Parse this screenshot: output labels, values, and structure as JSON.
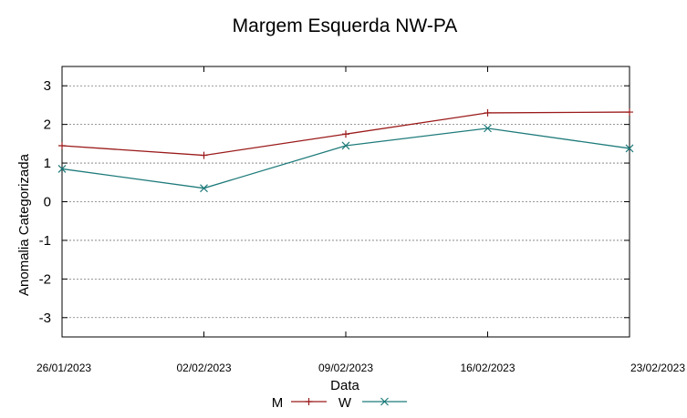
{
  "chart_data": {
    "type": "line",
    "title": "Margem Esquerda NW-PA",
    "xlabel": "Data",
    "ylabel": "Anomalia Categorizada",
    "x": [
      "26/01/2023",
      "02/02/2023",
      "09/02/2023",
      "16/02/2023",
      "23/02/2023"
    ],
    "ylim": [
      -3.5,
      3.5
    ],
    "yticks": [
      3,
      2,
      1,
      0,
      -1,
      -2,
      -3
    ],
    "grid": "horizontal dashed",
    "legend_position": "bottom-center",
    "series": [
      {
        "name": "M",
        "values": [
          1.45,
          1.2,
          1.75,
          2.3,
          2.32
        ],
        "color": "#9b1a1a",
        "marker": "plus"
      },
      {
        "name": "W",
        "values": [
          0.85,
          0.35,
          1.45,
          1.9,
          1.38
        ],
        "color": "#1e7a7a",
        "marker": "cross"
      }
    ]
  }
}
